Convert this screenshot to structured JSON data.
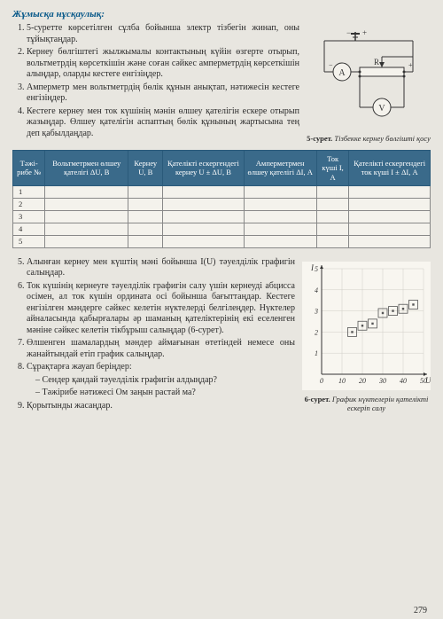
{
  "heading": "Жұмысқа нұсқаулық:",
  "instructions": [
    "5-суретте көрсетілген сұлба бойынша электр тізбегін жинап, оны тұйықтаңдар.",
    "Кернеу бөлгіштегі жылжымалы контактының күйін өзгерте отырып, вольтметрдің көрсет­кішін және соған сәйкес амперметрдің көр­сеткішін алыңдар, оларды кестеге енгізіңдер.",
    "Амперметр мен вольтметрдің бөлік құнын анықтап, нәтижесін кестеге енгізіңдер.",
    "Кестеге кернеу мен ток күшінің мәнін өлшеу қателігін ескере отырып жазыңдар. Өлшеу қателігін аспаптың бөлік құнының жарты­сына тең деп қабылдаңдар."
  ],
  "fig5_caption_bold": "5-сурет.",
  "fig5_caption": " Тізбекке кернеу бөлгішті қосу",
  "circuit_label_A": "A",
  "circuit_label_R": "R",
  "circuit_label_V": "V",
  "table": {
    "headers": [
      "Тәжі­рибе №",
      "Вольтметрмен өлшеу қателігі ΔU, В",
      "Кернеу U, В",
      "Қателікті ескер­гендегі кернеу U ± ΔU, В",
      "Ампер­метрмен өлшеу қателігі ΔI, А",
      "Ток күші I, А",
      "Қателікті ескер­гендегі ток күші I ± ΔI, А"
    ],
    "rows": [
      "1",
      "2",
      "3",
      "4",
      "5"
    ]
  },
  "bottom": [
    "Алынған кернеу мен күштің мәні бойынша I(U) тәуелділік графигін салыңдар.",
    "Ток күшінің кернеуге тәуелділік графигін салу үшін кернеуді абцисса осімен, ал ток күшін ордината осі бойынша бағыттаңдар. Кестеге енгізілген мәндерге сәйкес келетін нүктелерді белгілеңдер. Нүктелер айнала­сында қабырғалары әр шаманың қателікте­рінің екі еселенген мәніне сәйкес келетін тікбұрыш салыңдар (6-сурет).",
    "Өлшенген шамалардың мәндер аймағынан өтетіндей немесе оны жанайтындай етіп гра­фик салыңдар.",
    "Сұрақтарға жауап беріңдер:",
    "Қорытынды жасаңдар."
  ],
  "q8_sub": [
    "– Сендер қандай тәуелділік графигін алдыңдар?",
    "– Тәжірибе нәтижесі Ом заңын растай ма?"
  ],
  "fig6_caption_bold": "6-сурет.",
  "fig6_caption": " График нүктелерін қателікті ескеріп салу",
  "chart": {
    "x_label": "U",
    "y_label": "I",
    "xlim": [
      0,
      50
    ],
    "xtick_step": 10,
    "ylim": [
      0,
      5
    ],
    "ytick_step": 1,
    "xticks": [
      "0",
      "10",
      "20",
      "30",
      "40",
      "50"
    ],
    "yticks": [
      "1",
      "2",
      "3",
      "4",
      "5"
    ],
    "grid_color": "#d0cec6",
    "axis_color": "#333",
    "point_color": "#555",
    "point_size": 5,
    "points": [
      {
        "x": 15,
        "y": 2.0
      },
      {
        "x": 20,
        "y": 2.3
      },
      {
        "x": 25,
        "y": 2.4
      },
      {
        "x": 30,
        "y": 2.9
      },
      {
        "x": 35,
        "y": 3.0
      },
      {
        "x": 40,
        "y": 3.1
      },
      {
        "x": 45,
        "y": 3.3
      }
    ]
  },
  "page_number": "279"
}
